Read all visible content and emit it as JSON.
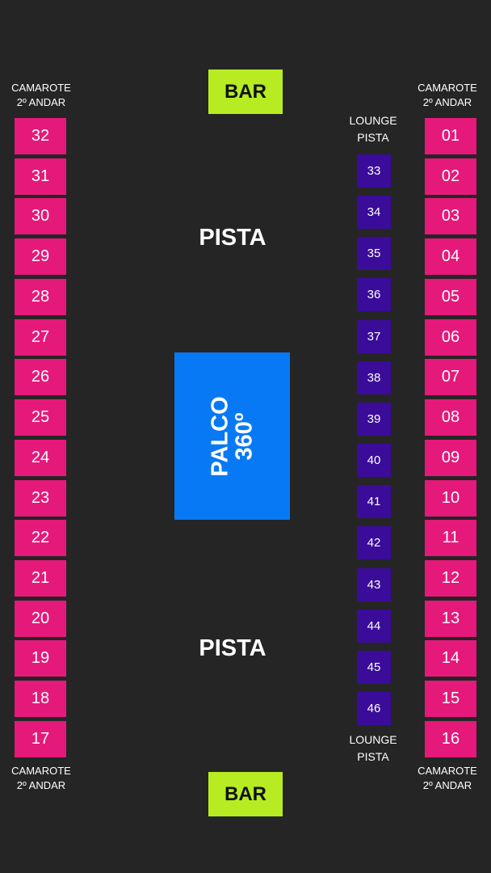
{
  "bar_label": "BAR",
  "pista_label": "PISTA",
  "stage": {
    "line1": "PALCO",
    "line2": "360º"
  },
  "camarote": {
    "line1": "CAMAROTE",
    "line2": "2º ANDAR"
  },
  "lounge": {
    "line1": "LOUNGE",
    "line2": "PISTA"
  },
  "left_boxes": [
    "32",
    "31",
    "30",
    "29",
    "28",
    "27",
    "26",
    "25",
    "24",
    "23",
    "22",
    "21",
    "20",
    "19",
    "18",
    "17"
  ],
  "right_boxes": [
    "01",
    "02",
    "03",
    "04",
    "05",
    "06",
    "07",
    "08",
    "09",
    "10",
    "11",
    "12",
    "13",
    "14",
    "15",
    "16"
  ],
  "lounge_boxes": [
    "33",
    "34",
    "35",
    "36",
    "37",
    "38",
    "39",
    "40",
    "41",
    "42",
    "43",
    "44",
    "45",
    "46"
  ],
  "colors": {
    "background": "#252525",
    "camarote": "#e5197a",
    "lounge": "#3a0c99",
    "bar": "#b6ec21",
    "stage": "#0879f4"
  }
}
